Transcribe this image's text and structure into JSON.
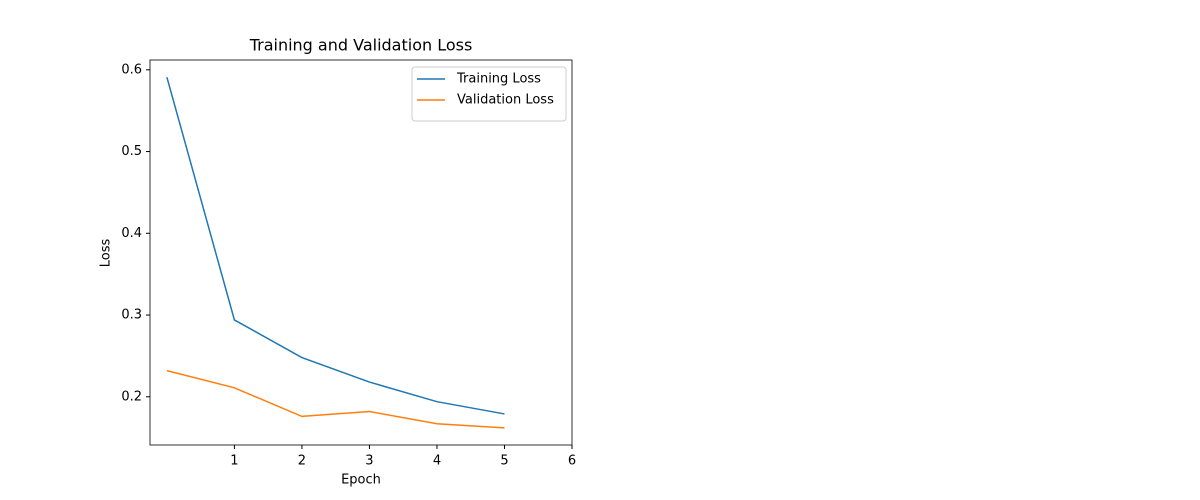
{
  "chart_data": {
    "type": "line",
    "title": "Training and Validation Loss",
    "x_label": "Epoch",
    "y_label": "Loss",
    "x": [
      0,
      1,
      2,
      3,
      4,
      5
    ],
    "series": [
      {
        "name": "Training Loss",
        "color": "#1f77b4",
        "values": [
          0.591,
          0.294,
          0.248,
          0.218,
          0.194,
          0.179
        ]
      },
      {
        "name": "Validation Loss",
        "color": "#ff7f0e",
        "values": [
          0.232,
          0.211,
          0.176,
          0.182,
          0.167,
          0.162
        ]
      }
    ],
    "xlim": [
      -0.25,
      6
    ],
    "xticks": [
      1,
      2,
      3,
      4,
      5,
      6
    ],
    "ylim": [
      0.141,
      0.612
    ],
    "yticks": [
      0.2,
      0.3,
      0.4,
      0.5,
      0.6
    ],
    "grid": false,
    "legend": "upper right"
  }
}
